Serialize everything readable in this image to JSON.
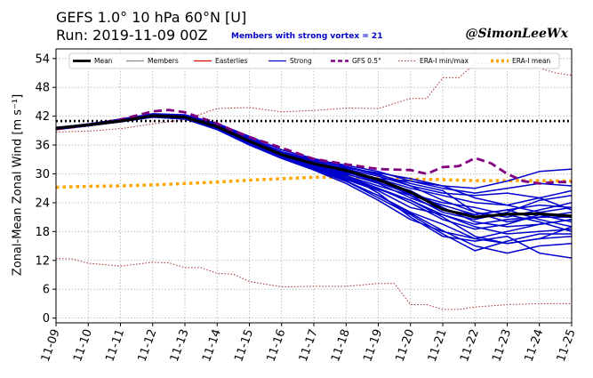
{
  "header": {
    "title_line1": "GEFS 1.0° 10 hPa 60°N [U]",
    "title_line2": "Run: 2019-11-09 00Z",
    "subtitle": "Members with strong vortex = 21",
    "credit": "@SimonLeeWx"
  },
  "chart_data": {
    "type": "line",
    "ylabel": "Zonal-Mean Zonal Wind [m s$^{-1}$]",
    "ylabel_display": "Zonal-Mean Zonal Wind [m s⁻¹]",
    "xlabel": "",
    "x_ticks": [
      "11-09",
      "11-10",
      "11-11",
      "11-12",
      "11-13",
      "11-14",
      "11-15",
      "11-16",
      "11-17",
      "11-18",
      "11-19",
      "11-20",
      "11-21",
      "11-22",
      "11-23",
      "11-24",
      "11-25"
    ],
    "xlim": [
      0,
      16
    ],
    "ylim": [
      -1,
      56
    ],
    "y_ticks": [
      0,
      6,
      12,
      18,
      24,
      30,
      36,
      42,
      48,
      54
    ],
    "grid": true,
    "legend_position": "top",
    "legend": [
      {
        "label": "Mean",
        "color": "#000000",
        "style": "solid-thick"
      },
      {
        "label": "Members",
        "color": "#888888",
        "style": "solid"
      },
      {
        "label": "Easterlies",
        "color": "#e00000",
        "style": "solid"
      },
      {
        "label": "Strong",
        "color": "#0000cc",
        "style": "solid"
      },
      {
        "label": "GFS 0.5°",
        "color": "#800080",
        "style": "dashed-thick"
      },
      {
        "label": "ERA-I min/max",
        "color": "#a52a2a",
        "style": "dotted"
      },
      {
        "label": "ERA-I mean",
        "color": "#ffa500",
        "style": "dotted-thick"
      }
    ],
    "reference_line": {
      "y": 41,
      "color": "#000000",
      "style": "dotted"
    },
    "series": [
      {
        "name": "Mean",
        "color": "#000000",
        "x": [
          0,
          1,
          2,
          3,
          4,
          5,
          6,
          7,
          8,
          9,
          10,
          11,
          12,
          13,
          14,
          15,
          16
        ],
        "y": [
          39.5,
          40.2,
          41.0,
          42.1,
          41.8,
          39.8,
          36.8,
          34.0,
          32.1,
          30.7,
          28.8,
          26.2,
          22.6,
          21.0,
          21.6,
          21.7,
          21.2
        ]
      },
      {
        "name": "GFS 0.5°",
        "color": "#800080",
        "x": [
          0,
          1,
          2,
          3,
          3.5,
          4,
          5,
          5.5,
          6,
          7,
          8,
          9,
          10,
          11,
          11.5,
          12,
          12.5,
          13,
          13.5,
          14,
          14.5,
          15,
          15.5,
          16
        ],
        "y": [
          39.3,
          40.1,
          41.3,
          43.0,
          43.3,
          42.8,
          40.5,
          39.0,
          37.7,
          35.4,
          33.1,
          32.0,
          31.0,
          30.8,
          30.0,
          31.4,
          31.6,
          33.3,
          32.2,
          30.0,
          28.5,
          28.0,
          28.3,
          28.3
        ]
      },
      {
        "name": "ERA-I mean",
        "color": "#ffa500",
        "x": [
          0,
          1,
          2,
          3,
          4,
          5,
          6,
          7,
          8,
          9,
          10,
          11,
          12,
          13,
          14,
          15,
          16
        ],
        "y": [
          27.2,
          27.4,
          27.5,
          27.7,
          28.0,
          28.3,
          28.7,
          29.0,
          29.3,
          29.3,
          29.0,
          28.9,
          28.8,
          28.6,
          28.6,
          28.6,
          28.5
        ]
      },
      {
        "name": "ERA-I max",
        "color": "#a52a2a",
        "x": [
          0,
          1,
          2,
          3,
          4,
          5,
          6,
          7,
          8,
          9,
          10,
          11,
          11.5,
          12,
          12.5,
          13,
          14,
          15,
          15.5,
          16
        ],
        "y": [
          38.7,
          38.9,
          39.4,
          40.4,
          41.3,
          43.6,
          43.8,
          42.9,
          43.2,
          43.7,
          43.6,
          45.7,
          45.7,
          50.0,
          50.0,
          53.0,
          53.0,
          52.0,
          51.0,
          50.5
        ]
      },
      {
        "name": "ERA-I min",
        "color": "#a52a2a",
        "x": [
          0,
          0.5,
          1,
          2,
          3,
          3.5,
          4,
          4.5,
          5,
          5.5,
          6,
          7,
          8,
          9,
          10,
          10.5,
          11,
          11.5,
          12,
          12.5,
          13,
          14,
          15,
          16
        ],
        "y": [
          12.4,
          12.3,
          11.4,
          10.8,
          11.6,
          11.5,
          10.5,
          10.5,
          9.3,
          9.1,
          7.6,
          6.5,
          6.6,
          6.6,
          7.2,
          7.2,
          2.8,
          2.8,
          1.8,
          1.8,
          2.3,
          2.8,
          3.0,
          3.0
        ]
      }
    ],
    "members": [
      {
        "x": [
          0,
          1,
          2,
          3,
          4,
          5,
          6,
          7,
          8,
          9,
          10,
          11,
          12,
          13,
          14,
          15,
          16
        ],
        "y": [
          39.2,
          40.1,
          41.2,
          42.3,
          42.0,
          40.0,
          37.2,
          34.5,
          32.8,
          31.5,
          30.0,
          27.5,
          26.0,
          25.5,
          26.0,
          25.0,
          22.5
        ]
      },
      {
        "x": [
          0,
          1,
          2,
          3,
          4,
          5,
          6,
          7,
          8,
          9,
          10,
          11,
          12,
          13,
          14,
          15,
          16
        ],
        "y": [
          39.6,
          40.3,
          41.0,
          41.9,
          41.5,
          39.5,
          36.5,
          33.8,
          31.5,
          29.5,
          27.0,
          24.0,
          20.5,
          18.5,
          19.5,
          21.5,
          20.0
        ]
      },
      {
        "x": [
          0,
          1,
          2,
          3,
          4,
          5,
          6,
          7,
          8,
          9,
          10,
          11,
          12,
          13,
          14,
          15,
          16
        ],
        "y": [
          39.4,
          40.0,
          40.9,
          42.0,
          41.9,
          39.6,
          36.6,
          33.5,
          31.0,
          28.5,
          25.0,
          21.5,
          17.5,
          14.0,
          16.0,
          17.5,
          17.5
        ]
      },
      {
        "x": [
          0,
          1,
          2,
          3,
          4,
          5,
          6,
          7,
          8,
          9,
          10,
          11,
          12,
          13,
          14,
          15,
          16
        ],
        "y": [
          39.3,
          40.2,
          41.1,
          42.4,
          42.2,
          40.3,
          37.5,
          34.6,
          33.0,
          31.8,
          30.5,
          28.5,
          27.5,
          27.0,
          28.5,
          30.5,
          31.0
        ]
      },
      {
        "x": [
          0,
          1,
          2,
          3,
          4,
          5,
          6,
          7,
          8,
          9,
          10,
          11,
          12,
          13,
          14,
          15,
          16
        ],
        "y": [
          39.5,
          40.1,
          41.2,
          42.2,
          41.7,
          39.8,
          36.9,
          33.9,
          31.7,
          29.8,
          26.0,
          21.0,
          17.0,
          16.0,
          17.0,
          13.5,
          12.5
        ]
      },
      {
        "x": [
          0,
          1,
          2,
          3,
          4,
          5,
          6,
          7,
          8,
          9,
          10,
          11,
          12,
          13,
          14,
          15,
          16
        ],
        "y": [
          39.7,
          40.3,
          41.0,
          42.0,
          41.6,
          39.3,
          36.2,
          33.6,
          32.0,
          30.5,
          28.5,
          26.5,
          23.0,
          20.0,
          19.0,
          19.5,
          20.5
        ]
      },
      {
        "x": [
          0,
          1,
          2,
          3,
          4,
          5,
          6,
          7,
          8,
          9,
          10,
          11,
          12,
          13,
          14,
          15,
          16
        ],
        "y": [
          39.4,
          40.2,
          41.3,
          42.1,
          41.9,
          40.1,
          37.0,
          34.3,
          32.4,
          30.8,
          29.0,
          27.0,
          25.5,
          24.0,
          23.5,
          25.0,
          26.5
        ]
      },
      {
        "x": [
          0,
          1,
          2,
          3,
          4,
          5,
          6,
          7,
          8,
          9,
          10,
          11,
          12,
          13,
          14,
          15,
          16
        ],
        "y": [
          39.2,
          40.0,
          40.8,
          41.8,
          41.4,
          39.2,
          36.0,
          33.2,
          30.8,
          28.0,
          24.5,
          20.5,
          18.0,
          16.5,
          15.5,
          16.5,
          19.0
        ]
      },
      {
        "x": [
          0,
          1,
          2,
          3,
          4,
          5,
          6,
          7,
          8,
          9,
          10,
          11,
          12,
          13,
          14,
          15,
          16
        ],
        "y": [
          39.6,
          40.4,
          41.4,
          42.5,
          42.3,
          40.5,
          37.8,
          35.0,
          33.2,
          31.4,
          29.8,
          28.0,
          26.5,
          22.0,
          20.0,
          21.0,
          22.0
        ]
      },
      {
        "x": [
          0,
          1,
          2,
          3,
          4,
          5,
          6,
          7,
          8,
          9,
          10,
          11,
          12,
          13,
          14,
          15,
          16
        ],
        "y": [
          39.5,
          40.1,
          41.0,
          41.9,
          41.6,
          39.6,
          36.6,
          33.4,
          31.2,
          28.8,
          26.5,
          23.0,
          21.5,
          19.5,
          20.5,
          21.0,
          21.0
        ]
      },
      {
        "x": [
          0,
          1,
          2,
          3,
          4,
          5,
          6,
          7,
          8,
          9,
          10,
          11,
          12,
          13,
          14,
          15,
          16
        ],
        "y": [
          39.3,
          40.0,
          41.1,
          42.2,
          41.9,
          39.9,
          36.9,
          34.0,
          32.0,
          30.0,
          28.0,
          25.0,
          22.5,
          21.5,
          22.5,
          23.5,
          23.0
        ]
      },
      {
        "x": [
          0,
          1,
          2,
          3,
          4,
          5,
          6,
          7,
          8,
          9,
          10,
          11,
          12,
          13,
          14,
          15,
          16
        ],
        "y": [
          39.4,
          40.2,
          41.2,
          42.1,
          41.8,
          39.7,
          36.7,
          33.7,
          31.4,
          29.0,
          26.8,
          24.5,
          21.5,
          19.0,
          17.5,
          18.0,
          18.5
        ]
      },
      {
        "x": [
          0,
          1,
          2,
          3,
          4,
          5,
          6,
          7,
          8,
          9,
          10,
          11,
          12,
          13,
          14,
          15,
          16
        ],
        "y": [
          39.5,
          40.3,
          41.1,
          42.0,
          41.7,
          39.8,
          36.8,
          33.9,
          31.8,
          30.2,
          29.0,
          28.5,
          27.0,
          26.0,
          27.0,
          28.0,
          27.5
        ]
      },
      {
        "x": [
          0,
          1,
          2,
          3,
          4,
          5,
          6,
          7,
          8,
          9,
          10,
          11,
          12,
          13,
          14,
          15,
          16
        ],
        "y": [
          39.6,
          40.2,
          41.0,
          41.9,
          41.5,
          39.4,
          36.4,
          33.3,
          31.0,
          28.4,
          25.5,
          22.0,
          19.5,
          16.5,
          18.0,
          19.5,
          20.5
        ]
      },
      {
        "x": [
          0,
          1,
          2,
          3,
          4,
          5,
          6,
          7,
          8,
          9,
          10,
          11,
          12,
          13,
          14,
          15,
          16
        ],
        "y": [
          39.3,
          40.1,
          41.2,
          42.3,
          42.1,
          40.2,
          37.3,
          34.4,
          32.6,
          31.0,
          29.5,
          27.5,
          24.5,
          22.0,
          21.0,
          22.5,
          24.0
        ]
      },
      {
        "x": [
          0,
          1,
          2,
          3,
          4,
          5,
          6,
          7,
          8,
          9,
          10,
          11,
          12,
          13,
          14,
          15,
          16
        ],
        "y": [
          39.4,
          40.0,
          40.9,
          41.8,
          41.4,
          39.4,
          36.4,
          33.5,
          31.2,
          28.5,
          25.5,
          21.8,
          18.2,
          15.0,
          13.5,
          15.0,
          15.5
        ]
      },
      {
        "x": [
          0,
          1,
          2,
          3,
          4,
          5,
          6,
          7,
          8,
          9,
          10,
          11,
          12,
          13,
          14,
          15,
          16
        ],
        "y": [
          39.5,
          40.2,
          41.1,
          42.1,
          41.8,
          39.9,
          36.9,
          34.1,
          32.2,
          30.6,
          28.7,
          25.5,
          22.0,
          20.5,
          22.0,
          24.5,
          25.5
        ]
      },
      {
        "x": [
          0,
          1,
          2,
          3,
          4,
          5,
          6,
          7,
          8,
          9,
          10,
          11,
          12,
          13,
          14,
          15,
          16
        ],
        "y": [
          39.6,
          40.3,
          41.2,
          42.0,
          41.7,
          39.6,
          36.6,
          33.6,
          31.6,
          29.6,
          27.5,
          25.5,
          23.5,
          21.5,
          22.5,
          20.5,
          19.0
        ]
      },
      {
        "x": [
          0,
          1,
          2,
          3,
          4,
          5,
          6,
          7,
          8,
          9,
          10,
          11,
          12,
          13,
          14,
          15,
          16
        ],
        "y": [
          39.4,
          40.1,
          41.0,
          42.2,
          41.9,
          40.0,
          37.0,
          34.2,
          32.3,
          30.4,
          28.2,
          25.8,
          24.0,
          23.0,
          21.5,
          20.0,
          18.0
        ]
      },
      {
        "x": [
          0,
          1,
          2,
          3,
          4,
          5,
          6,
          7,
          8,
          9,
          10,
          11,
          12,
          13,
          14,
          15,
          16
        ],
        "y": [
          39.5,
          40.2,
          41.1,
          42.0,
          41.6,
          39.5,
          36.5,
          33.6,
          31.5,
          29.2,
          27.0,
          24.5,
          21.0,
          17.0,
          15.5,
          16.5,
          17.0
        ]
      },
      {
        "x": [
          0,
          1,
          2,
          3,
          4,
          5,
          6,
          7,
          8,
          9,
          10,
          11,
          12,
          13,
          14,
          15,
          16
        ],
        "y": [
          39.3,
          40.1,
          41.2,
          42.3,
          42.0,
          40.1,
          37.1,
          34.3,
          32.5,
          31.2,
          30.2,
          29.0,
          27.5,
          25.0,
          23.5,
          22.0,
          23.0
        ]
      }
    ]
  }
}
